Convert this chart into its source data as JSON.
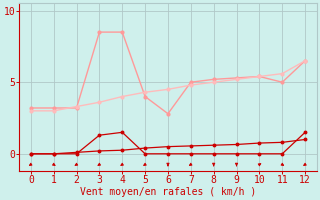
{
  "bg_color": "#cff0ec",
  "grid_color": "#b0c8c8",
  "xlabel": "Vent moyen/en rafales ( km/h )",
  "xlim": [
    -0.5,
    12.5
  ],
  "ylim": [
    -1.2,
    10.5
  ],
  "yticks": [
    0,
    5,
    10
  ],
  "xticks": [
    0,
    1,
    2,
    3,
    4,
    5,
    6,
    7,
    8,
    9,
    10,
    11,
    12
  ],
  "line_rafales": {
    "x": [
      0,
      1,
      2,
      3,
      4,
      5,
      6,
      7,
      8,
      9,
      10,
      11,
      12
    ],
    "y": [
      3.2,
      3.2,
      3.2,
      8.5,
      8.5,
      4.0,
      2.8,
      5.0,
      5.2,
      5.3,
      5.4,
      5.0,
      6.5
    ],
    "color": "#ff9999",
    "lw": 1.0,
    "marker": "o",
    "ms": 2.0
  },
  "line_moyen": {
    "x": [
      0,
      1,
      2,
      3,
      4,
      5,
      6,
      7,
      8,
      9,
      10,
      11,
      12
    ],
    "y": [
      3.0,
      3.0,
      3.3,
      3.6,
      4.0,
      4.3,
      4.5,
      4.8,
      5.0,
      5.2,
      5.4,
      5.6,
      6.5
    ],
    "color": "#ffbbbb",
    "lw": 1.0,
    "marker": "o",
    "ms": 2.0
  },
  "line_dark1": {
    "x": [
      0,
      1,
      2,
      3,
      4,
      5,
      6,
      7,
      8,
      9,
      10,
      11,
      12
    ],
    "y": [
      0.0,
      0.0,
      0.0,
      1.3,
      1.5,
      0.0,
      0.0,
      0.0,
      0.0,
      0.0,
      0.0,
      0.0,
      1.5
    ],
    "color": "#cc0000",
    "lw": 0.9,
    "marker": "o",
    "ms": 1.8
  },
  "line_dark2": {
    "x": [
      0,
      1,
      2,
      3,
      4,
      5,
      6,
      7,
      8,
      9,
      10,
      11,
      12
    ],
    "y": [
      0.0,
      0.0,
      0.1,
      0.2,
      0.25,
      0.4,
      0.5,
      0.55,
      0.6,
      0.65,
      0.75,
      0.8,
      1.0
    ],
    "color": "#cc0000",
    "lw": 0.9,
    "marker": "o",
    "ms": 1.8
  },
  "arrows": {
    "x": [
      0,
      1,
      2,
      3,
      4,
      5,
      6,
      7,
      8,
      9,
      10,
      11,
      12
    ],
    "angles_deg": [
      225,
      315,
      225,
      225,
      225,
      225,
      270,
      225,
      270,
      270,
      45,
      315,
      225
    ]
  },
  "arrow_color": "#cc0000",
  "xlabel_color": "#cc0000",
  "xlabel_fontsize": 7,
  "tick_color": "#cc0000",
  "tick_fontsize": 7,
  "axis_line_color": "#cc0000",
  "top_right_spine_color": "#b0c8c8"
}
